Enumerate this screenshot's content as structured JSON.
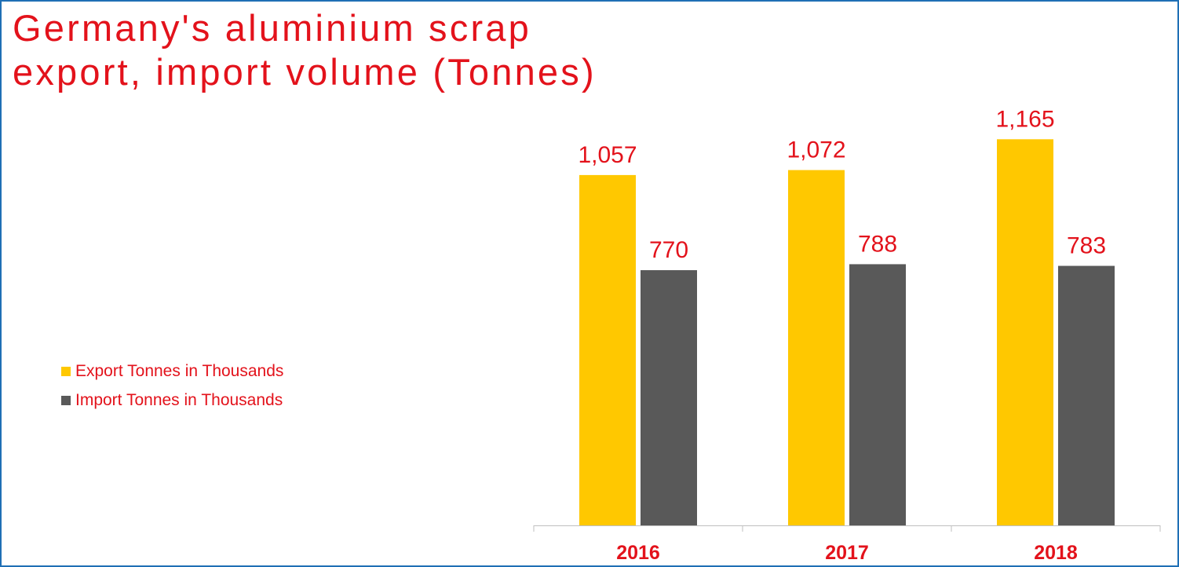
{
  "chart_data": {
    "type": "bar",
    "title_lines": [
      "Germany's aluminium scrap",
      "export, import volume (Tonnes)"
    ],
    "categories": [
      "2016",
      "2017",
      "2018"
    ],
    "series": [
      {
        "name": "Export Tonnes in Thousands",
        "values": [
          1057,
          1072,
          1165
        ],
        "labels": [
          "1,057",
          "1,072",
          "1,165"
        ],
        "color": "#ffc800"
      },
      {
        "name": "Import Tonnes in Thousands",
        "values": [
          770,
          788,
          783
        ],
        "labels": [
          "770",
          "788",
          "783"
        ],
        "color": "#595959"
      }
    ],
    "ylim": [
      0,
      1270
    ],
    "grid": false,
    "legend_position": "left",
    "text_color": "#e3121b",
    "border_color": "#1f6fb5"
  }
}
